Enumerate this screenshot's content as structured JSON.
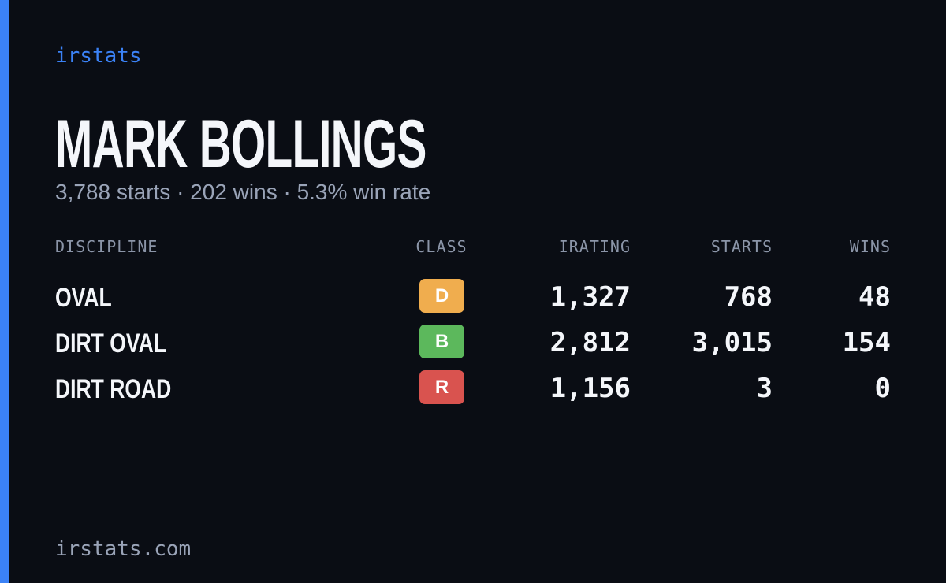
{
  "brand": "irstats",
  "driver": {
    "name": "MARK BOLLINGS",
    "summary": "3,788 starts · 202 wins · 5.3% win rate"
  },
  "table": {
    "headers": [
      "DISCIPLINE",
      "CLASS",
      "IRATING",
      "STARTS",
      "WINS"
    ],
    "rows": [
      {
        "discipline": "OVAL",
        "class": "D",
        "class_color": "#f0ad4e",
        "irating": "1,327",
        "starts": "768",
        "wins": "48"
      },
      {
        "discipline": "DIRT OVAL",
        "class": "B",
        "class_color": "#5cb85c",
        "irating": "2,812",
        "starts": "3,015",
        "wins": "154"
      },
      {
        "discipline": "DIRT ROAD",
        "class": "R",
        "class_color": "#d9534f",
        "irating": "1,156",
        "starts": "3",
        "wins": "0"
      }
    ]
  },
  "footer": "irstats.com"
}
